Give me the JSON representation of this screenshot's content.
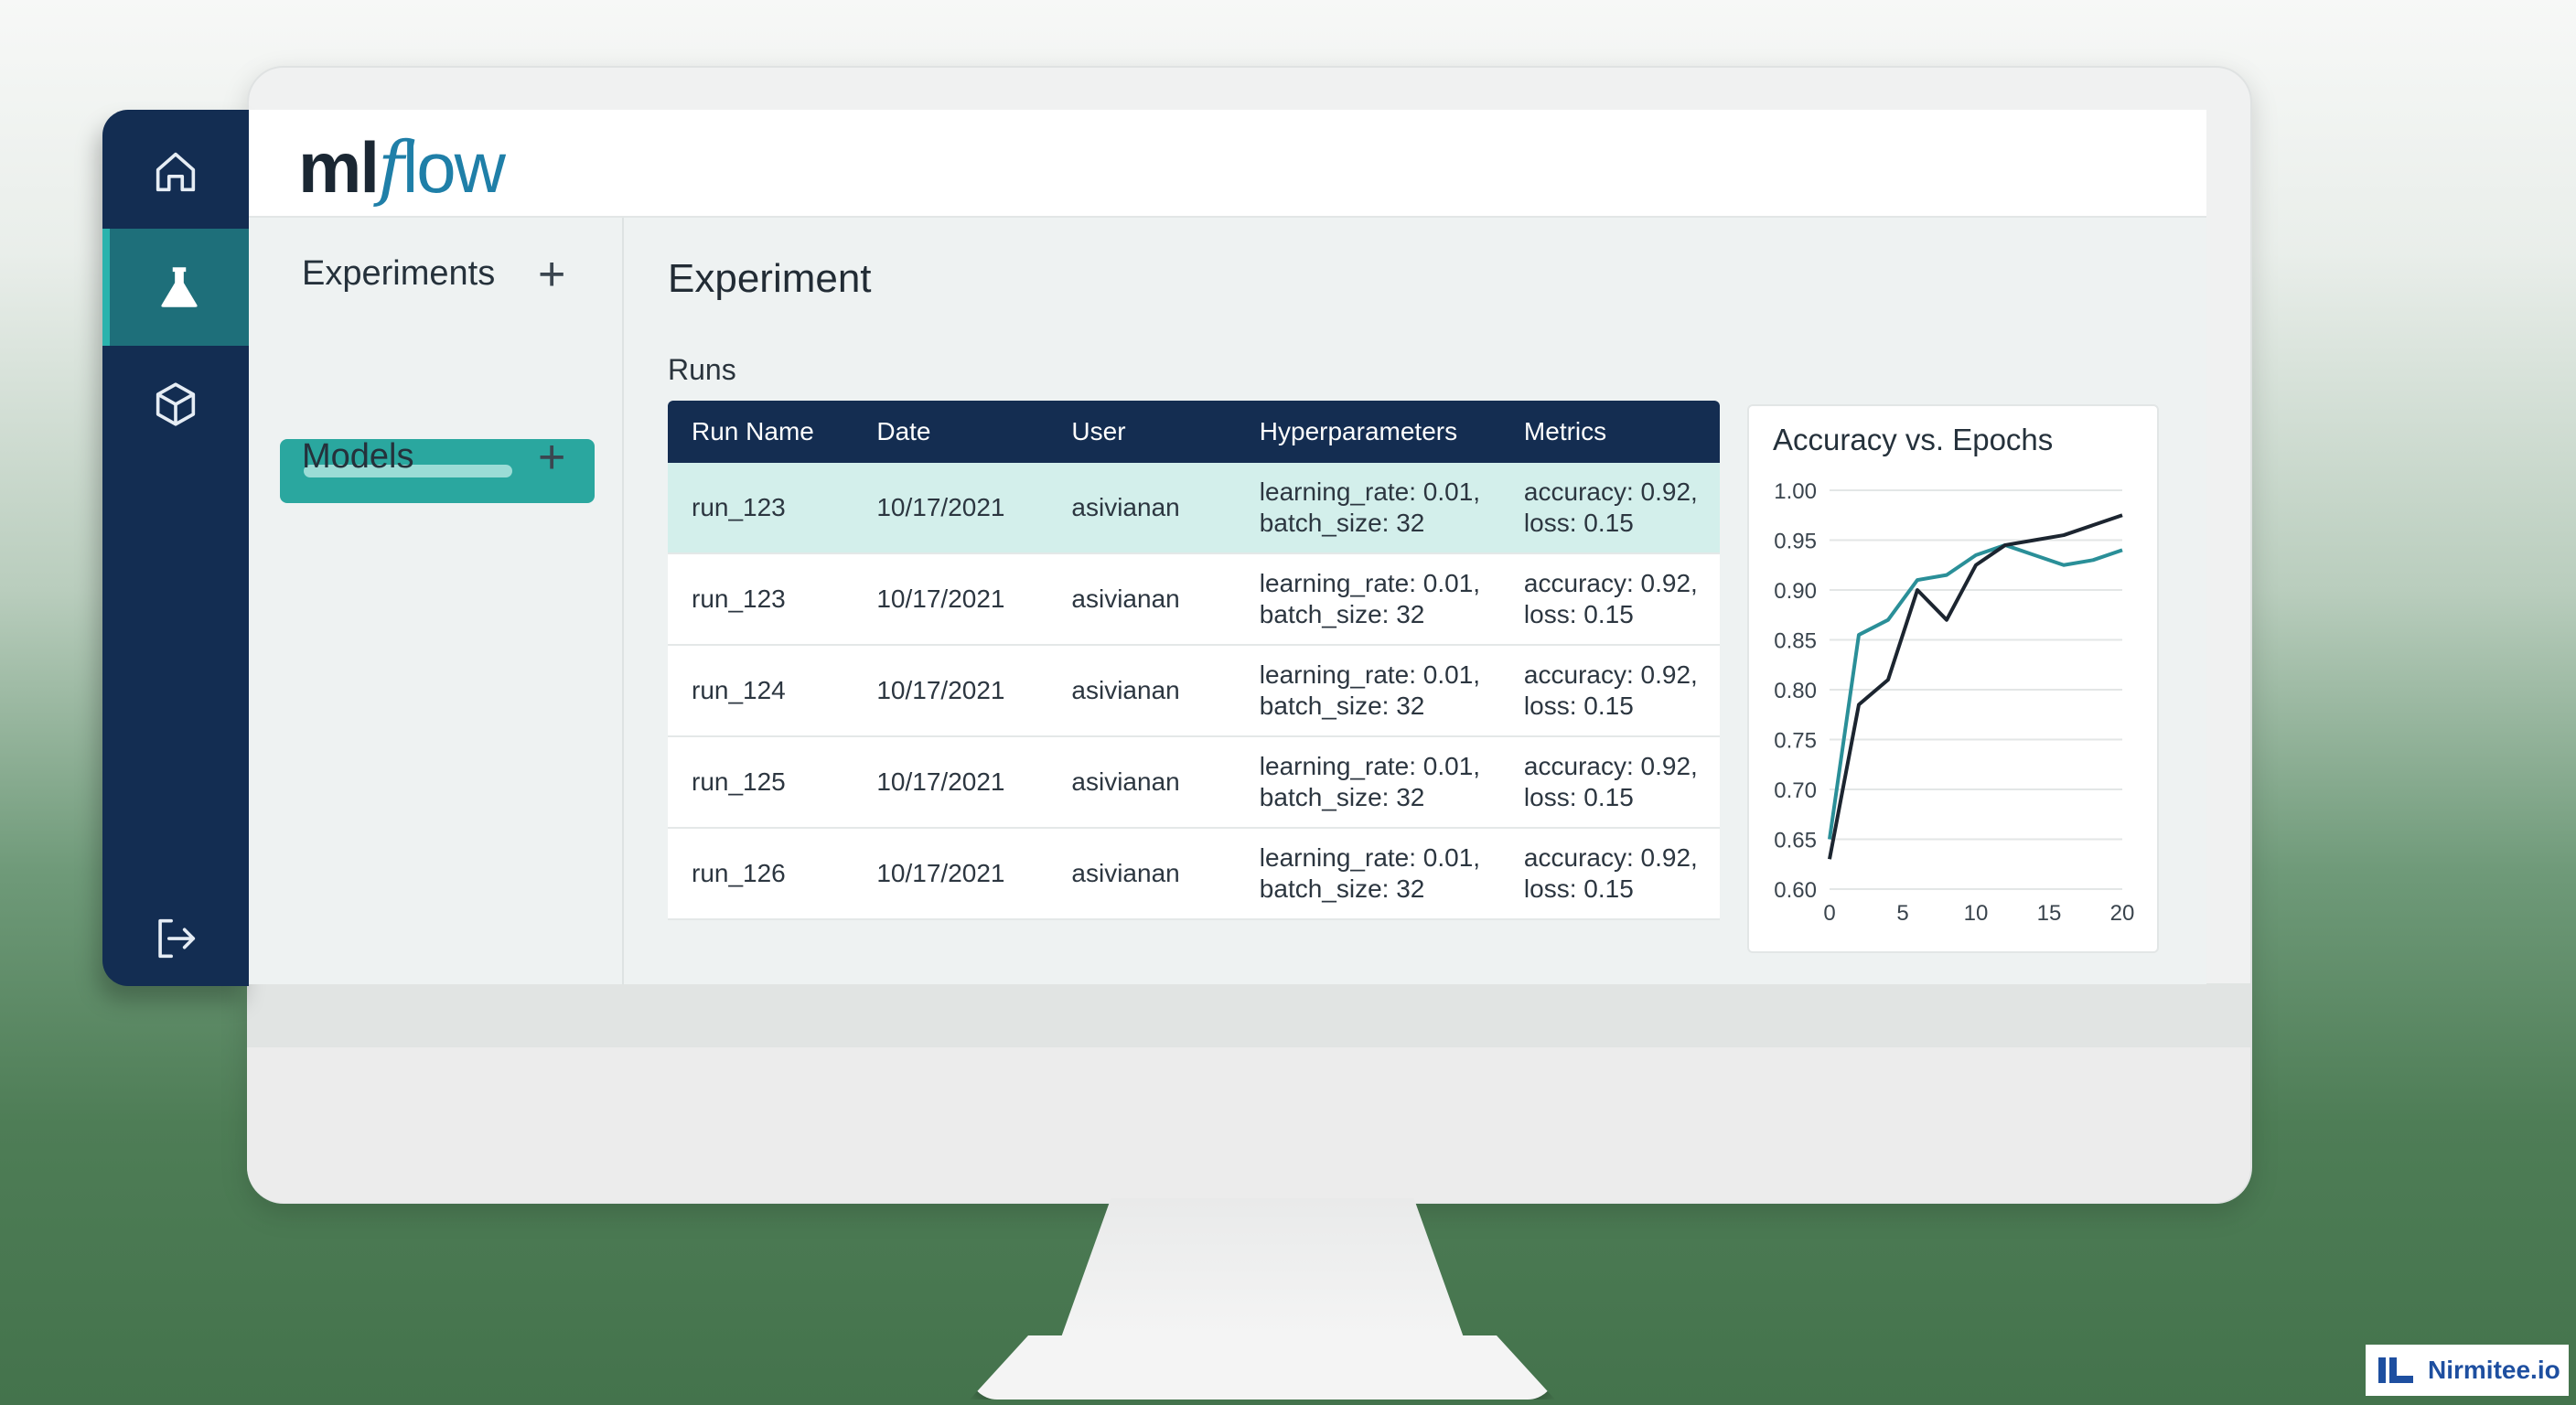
{
  "app": {
    "logo_ml": "ml",
    "logo_f": "f",
    "logo_low": "low"
  },
  "sidebar": {
    "items": [
      {
        "icon": "home-icon",
        "active": false
      },
      {
        "icon": "flask-icon",
        "active": true
      },
      {
        "icon": "cube-icon",
        "active": false
      },
      {
        "icon": "logout-icon",
        "active": false
      }
    ]
  },
  "left_panel": {
    "experiments_label": "Experiments",
    "models_label": "Models",
    "add_symbol": "+"
  },
  "main": {
    "title": "Experiment",
    "runs_label": "Runs",
    "columns": [
      "Run Name",
      "Date",
      "User",
      "Hyperparameters",
      "Metrics"
    ],
    "rows": [
      {
        "name": "run_123",
        "date": "10/17/2021",
        "user": "asivianan",
        "hp1": "learning_rate: 0.01,",
        "hp2": "batch_size: 32",
        "m1": "accuracy: 0.92,",
        "m2": "loss: 0.15",
        "selected": true
      },
      {
        "name": "run_123",
        "date": "10/17/2021",
        "user": "asivianan",
        "hp1": "learning_rate: 0.01,",
        "hp2": "batch_size: 32",
        "m1": "accuracy: 0.92,",
        "m2": "loss: 0.15",
        "selected": false
      },
      {
        "name": "run_124",
        "date": "10/17/2021",
        "user": "asivianan",
        "hp1": "learning_rate: 0.01,",
        "hp2": "batch_size: 32",
        "m1": "accuracy: 0.92,",
        "m2": "loss: 0.15",
        "selected": false
      },
      {
        "name": "run_125",
        "date": "10/17/2021",
        "user": "asivianan",
        "hp1": "learning_rate: 0.01,",
        "hp2": "batch_size: 32",
        "m1": "accuracy: 0.92,",
        "m2": "loss: 0.15",
        "selected": false
      },
      {
        "name": "run_126",
        "date": "10/17/2021",
        "user": "asivianan",
        "hp1": "learning_rate: 0.01,",
        "hp2": "batch_size: 32",
        "m1": "accuracy: 0.92,",
        "m2": "loss: 0.15",
        "selected": false
      }
    ]
  },
  "chart_data": {
    "type": "line",
    "title": "Accuracy vs. Epochs",
    "xlabel": "",
    "ylabel": "",
    "xlim": [
      0,
      20
    ],
    "ylim": [
      0.6,
      1.0
    ],
    "xticks": [
      "0",
      "5",
      "10",
      "15",
      "20"
    ],
    "yticks": [
      "0.60",
      "0.65",
      "0.70",
      "0.75",
      "0.80",
      "0.85",
      "0.90",
      "0.95",
      "1.00"
    ],
    "grid": true,
    "series": [
      {
        "color": "#2a8f98",
        "x": [
          0,
          2,
          4,
          6,
          8,
          10,
          12,
          14,
          16,
          18,
          20
        ],
        "y": [
          0.65,
          0.855,
          0.87,
          0.91,
          0.915,
          0.935,
          0.945,
          0.935,
          0.925,
          0.93,
          0.94
        ]
      },
      {
        "color": "#1c2530",
        "x": [
          0,
          2,
          4,
          6,
          8,
          10,
          12,
          14,
          16,
          18,
          20
        ],
        "y": [
          0.63,
          0.785,
          0.81,
          0.9,
          0.87,
          0.925,
          0.945,
          0.95,
          0.955,
          0.965,
          0.975
        ]
      }
    ]
  },
  "brand": {
    "name": "Nirmitee.io",
    "colors": {
      "accent": "#2aa79f",
      "navy": "#132d52"
    }
  }
}
